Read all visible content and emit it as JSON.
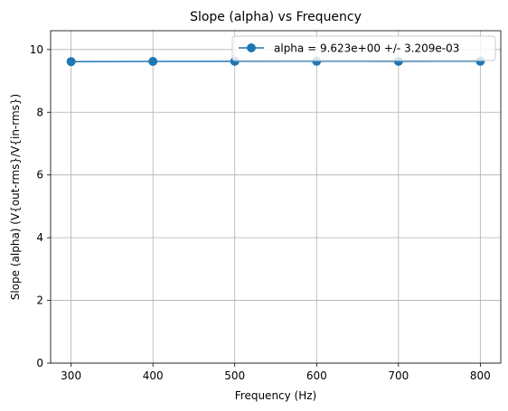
{
  "chart_data": {
    "type": "line",
    "title": "Slope (alpha) vs Frequency",
    "xlabel": "Frequency (Hz)",
    "ylabel": "Slope (alpha) (V{out-rms}/V{in-rms})",
    "x": [
      300,
      400,
      500,
      600,
      700,
      800
    ],
    "series": [
      {
        "name": "alpha = 9.623e+00 +/- 3.209e-03",
        "values": [
          9.615,
          9.62,
          9.625,
          9.627,
          9.626,
          9.627
        ],
        "color": "#1f77b4",
        "marker": "circle"
      }
    ],
    "xlim": [
      275,
      825
    ],
    "ylim": [
      0,
      10.6
    ],
    "xticks": [
      300,
      400,
      500,
      600,
      700,
      800
    ],
    "yticks": [
      0,
      2,
      4,
      6,
      8,
      10
    ],
    "grid": true,
    "legend_position": "top-right"
  }
}
